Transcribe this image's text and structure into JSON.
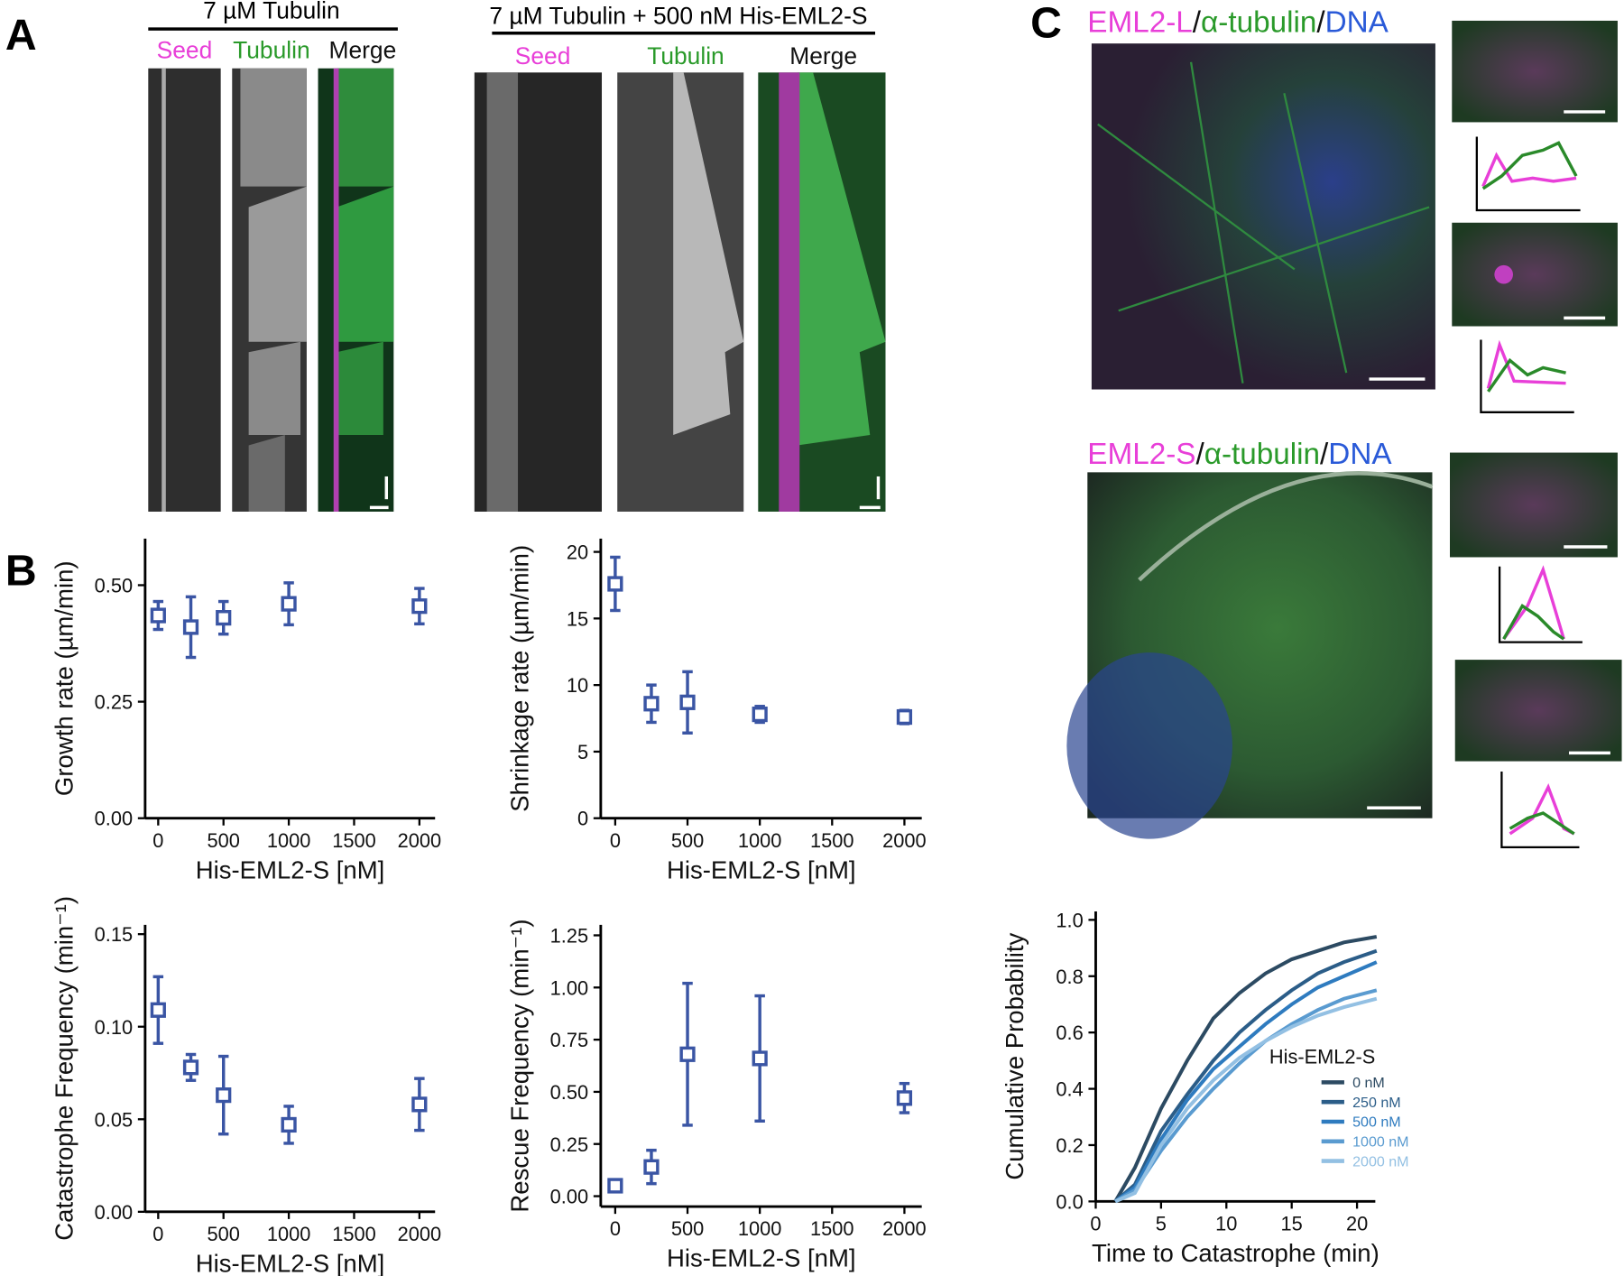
{
  "figure": {
    "panel_labels": [
      "A",
      "B",
      "C"
    ],
    "kymo_left": {
      "title": "7 µM Tubulin",
      "channels": [
        "Seed",
        "Tubulin",
        "Merge"
      ]
    },
    "kymo_right": {
      "title": "7 µM Tubulin + 500 nM His-EML2-S",
      "channels": [
        "Seed",
        "Tubulin",
        "Merge"
      ]
    },
    "cell_top": {
      "parts": [
        "EML2-L",
        "/",
        "α-tubulin",
        "/",
        "DNA"
      ]
    },
    "cell_bottom": {
      "parts": [
        "EML2-S",
        "/",
        "α-tubulin",
        "/",
        "DNA"
      ]
    }
  },
  "chart_data": [
    {
      "type": "scatter",
      "x": [
        0,
        250,
        500,
        1000,
        2000
      ],
      "values": [
        0.435,
        0.41,
        0.43,
        0.46,
        0.455
      ],
      "errors": [
        0.03,
        0.065,
        0.035,
        0.045,
        0.038
      ],
      "color": "#3a55a4",
      "xlabel": "His-EML2-S [nM]",
      "ylabel": "Growth rate (µm/min)",
      "xlim": [
        -100,
        2120
      ],
      "ylim": [
        0,
        0.6
      ],
      "xticks": [
        0,
        500,
        1000,
        1500,
        2000
      ],
      "yticks": [
        {
          "value": 0,
          "label": "0.00"
        },
        {
          "value": 0.25,
          "label": "0.25"
        },
        {
          "value": 0.5,
          "label": "0.50"
        }
      ]
    },
    {
      "type": "scatter",
      "x": [
        0,
        250,
        500,
        1000,
        2000
      ],
      "values": [
        17.6,
        8.6,
        8.7,
        7.8,
        7.6
      ],
      "errors": [
        2.0,
        1.4,
        2.3,
        0.6,
        0.5
      ],
      "color": "#3a55a4",
      "xlabel": "His-EML2-S [nM]",
      "ylabel": "Shrinkage rate (µm/min)",
      "xlim": [
        -100,
        2120
      ],
      "ylim": [
        0,
        21
      ],
      "xticks": [
        0,
        500,
        1000,
        1500,
        2000
      ],
      "yticks": [
        0,
        5,
        10,
        15,
        20
      ]
    },
    {
      "type": "scatter",
      "x": [
        0,
        250,
        500,
        1000,
        2000
      ],
      "values": [
        0.109,
        0.078,
        0.063,
        0.047,
        0.058
      ],
      "errors": [
        0.018,
        0.007,
        0.021,
        0.01,
        0.014
      ],
      "color": "#3a55a4",
      "xlabel": "His-EML2-S [nM]",
      "ylabel": "Catastrophe Frequency (min⁻¹)",
      "xlim": [
        -100,
        2120
      ],
      "ylim": [
        0,
        0.155
      ],
      "xticks": [
        0,
        500,
        1000,
        1500,
        2000
      ],
      "yticks": [
        {
          "value": 0,
          "label": "0.00"
        },
        {
          "value": 0.05,
          "label": "0.05"
        },
        {
          "value": 0.1,
          "label": "0.10"
        },
        {
          "value": 0.15,
          "label": "0.15"
        }
      ]
    },
    {
      "type": "scatter",
      "x": [
        0,
        250,
        500,
        1000,
        2000
      ],
      "values": [
        0.05,
        0.14,
        0.68,
        0.66,
        0.47
      ],
      "errors": [
        0.02,
        0.08,
        0.34,
        0.3,
        0.07
      ],
      "color": "#3a55a4",
      "xlabel": "His-EML2-S [nM]",
      "ylabel": "Rescue Frequency (min⁻¹)",
      "xlim": [
        -100,
        2120
      ],
      "ylim": [
        -0.05,
        1.3
      ],
      "xticks": [
        0,
        500,
        1000,
        1500,
        2000
      ],
      "yticks": [
        {
          "value": 0,
          "label": "0.00"
        },
        {
          "value": 0.25,
          "label": "0.25"
        },
        {
          "value": 0.5,
          "label": "0.50"
        },
        {
          "value": 0.75,
          "label": "0.75"
        },
        {
          "value": 1,
          "label": "1.00"
        },
        {
          "value": 1.25,
          "label": "1.25"
        }
      ]
    },
    {
      "type": "line",
      "x": [
        1.5,
        3,
        5,
        7,
        9,
        11,
        13,
        15,
        17,
        19,
        21.5
      ],
      "series": [
        {
          "name": "0 nM",
          "color": "#2c4a62",
          "values": [
            0,
            0.12,
            0.33,
            0.5,
            0.65,
            0.74,
            0.81,
            0.86,
            0.89,
            0.92,
            0.94
          ]
        },
        {
          "name": "250 nM",
          "color": "#2b5d88",
          "values": [
            0,
            0.06,
            0.25,
            0.38,
            0.5,
            0.6,
            0.68,
            0.75,
            0.81,
            0.85,
            0.89
          ]
        },
        {
          "name": "500 nM",
          "color": "#2e7bbf",
          "values": [
            0,
            0.05,
            0.22,
            0.36,
            0.47,
            0.55,
            0.63,
            0.7,
            0.76,
            0.8,
            0.85
          ]
        },
        {
          "name": "1000 nM",
          "color": "#5a9bd0",
          "values": [
            0,
            0.04,
            0.18,
            0.3,
            0.4,
            0.49,
            0.57,
            0.63,
            0.68,
            0.72,
            0.75
          ]
        },
        {
          "name": "2000 nM",
          "color": "#93c0e3",
          "values": [
            0,
            0.03,
            0.2,
            0.33,
            0.43,
            0.51,
            0.57,
            0.62,
            0.66,
            0.69,
            0.72
          ]
        }
      ],
      "xlabel": "Time to Catastrophe (min)",
      "ylabel": "Cumulative Probability",
      "legend_title": "His-EML2-S",
      "legend": "lower right",
      "xlim": [
        0,
        21.4
      ],
      "ylim": [
        0,
        1.03
      ],
      "xticks": [
        0,
        5,
        10,
        15,
        20
      ],
      "yticks": [
        {
          "value": 0,
          "label": "0.0"
        },
        0.2,
        0.4,
        0.6,
        0.8,
        {
          "value": 1,
          "label": "1.0"
        }
      ]
    }
  ]
}
